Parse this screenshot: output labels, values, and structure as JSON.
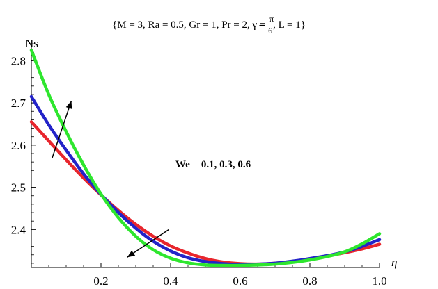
{
  "chart_data": {
    "type": "line",
    "params_parts": [
      "{M = 3, Ra = 0.5, Gr = 1, Pr = 2, γ = ",
      "π",
      "6",
      ", L = 1}"
    ],
    "ylabel": "Ns",
    "xlabel": "η",
    "annotation": "We = 0.1, 0.3, 0.6",
    "xlim": [
      0,
      1.0
    ],
    "ylim": [
      2.31,
      2.85
    ],
    "x_ticks": [
      0.2,
      0.4,
      0.6,
      0.8,
      1.0
    ],
    "x_tick_labels": [
      "0.2",
      "0.4",
      "0.6",
      "0.8",
      "1.0"
    ],
    "y_ticks": [
      2.4,
      2.5,
      2.6,
      2.7,
      2.8
    ],
    "y_tick_labels": [
      "2.4",
      "2.5",
      "2.6",
      "2.7",
      "2.8"
    ],
    "grid": false,
    "x": [
      0,
      0.05,
      0.1,
      0.15,
      0.2,
      0.25,
      0.3,
      0.35,
      0.4,
      0.45,
      0.5,
      0.55,
      0.6,
      0.65,
      0.7,
      0.75,
      0.8,
      0.85,
      0.9,
      0.95,
      1.0
    ],
    "series": [
      {
        "color": "#e8262d",
        "values": [
          2.655,
          2.61,
          2.565,
          2.522,
          2.482,
          2.445,
          2.412,
          2.384,
          2.361,
          2.344,
          2.331,
          2.323,
          2.319,
          2.318,
          2.32,
          2.324,
          2.33,
          2.337,
          2.345,
          2.354,
          2.365
        ]
      },
      {
        "color": "#2323c8",
        "values": [
          2.715,
          2.648,
          2.588,
          2.532,
          2.483,
          2.44,
          2.403,
          2.372,
          2.349,
          2.333,
          2.324,
          2.319,
          2.317,
          2.318,
          2.32,
          2.325,
          2.331,
          2.338,
          2.347,
          2.36,
          2.376
        ]
      },
      {
        "color": "#2ee62e",
        "values": [
          2.825,
          2.72,
          2.632,
          2.553,
          2.484,
          2.428,
          2.384,
          2.352,
          2.332,
          2.321,
          2.316,
          2.315,
          2.315,
          2.316,
          2.318,
          2.322,
          2.328,
          2.336,
          2.347,
          2.366,
          2.39
        ]
      }
    ],
    "arrows": [
      {
        "from": [
          0.06,
          2.57
        ],
        "to": [
          0.115,
          2.705
        ]
      },
      {
        "from": [
          0.395,
          2.4
        ],
        "to": [
          0.275,
          2.334
        ]
      }
    ]
  }
}
